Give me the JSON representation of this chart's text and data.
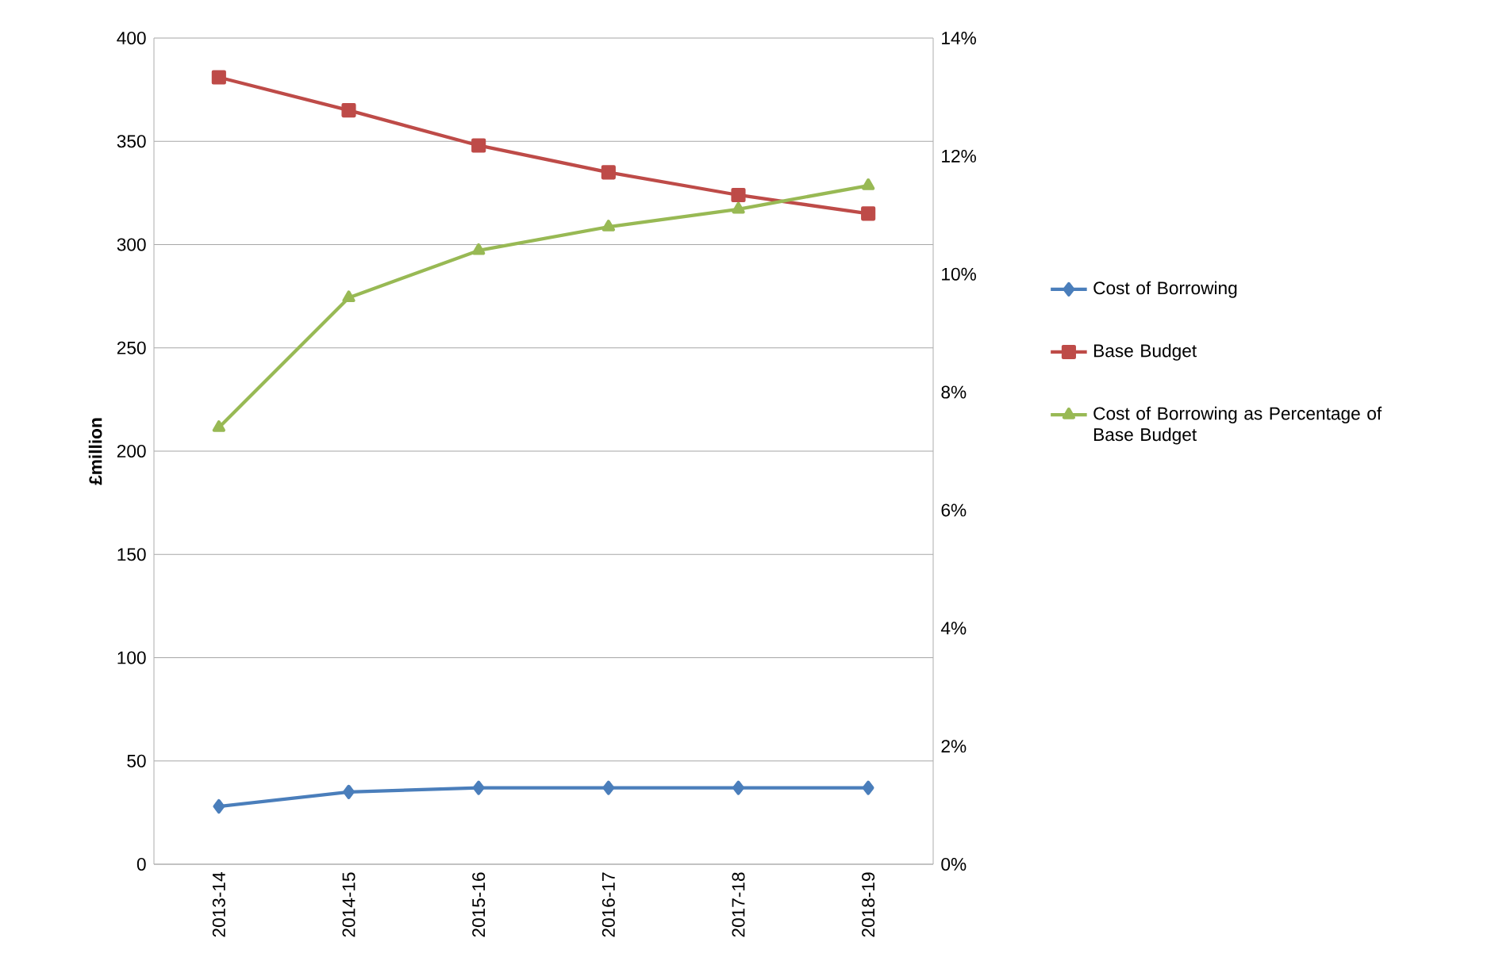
{
  "chart_data": {
    "type": "line",
    "ylabel": "£million",
    "categories": [
      "2013-14",
      "2014-15",
      "2015-16",
      "2016-17",
      "2017-18",
      "2018-19"
    ],
    "series": [
      {
        "name": "Cost of Borrowing",
        "color": "#4a7ebb",
        "marker": "diamond",
        "values": [
          28,
          35,
          37,
          37,
          37,
          37
        ]
      },
      {
        "name": "Base Budget",
        "color": "#be4b48",
        "marker": "square",
        "values": [
          381,
          365,
          348,
          335,
          324,
          315
        ]
      },
      {
        "name": "Cost of Borrowing as Percentage of Base Budget",
        "color": "#98b954",
        "marker": "triangle",
        "axis": "y2",
        "values": [
          7.4,
          9.6,
          10.4,
          10.8,
          11.1,
          11.5
        ]
      }
    ],
    "ylim": [
      0,
      400
    ],
    "yticks": [
      0,
      50,
      100,
      150,
      200,
      250,
      300,
      350,
      400
    ],
    "y2lim": [
      0,
      14
    ],
    "y2ticks": [
      {
        "value": 0,
        "label": "0%"
      },
      {
        "value": 2,
        "label": "2%"
      },
      {
        "value": 4,
        "label": "4%"
      },
      {
        "value": 6,
        "label": "6%"
      },
      {
        "value": 8,
        "label": "8%"
      },
      {
        "value": 10,
        "label": "10%"
      },
      {
        "value": 12,
        "label": "12%"
      },
      {
        "value": 14,
        "label": "14%"
      }
    ],
    "grid": "y",
    "legend": "right"
  }
}
